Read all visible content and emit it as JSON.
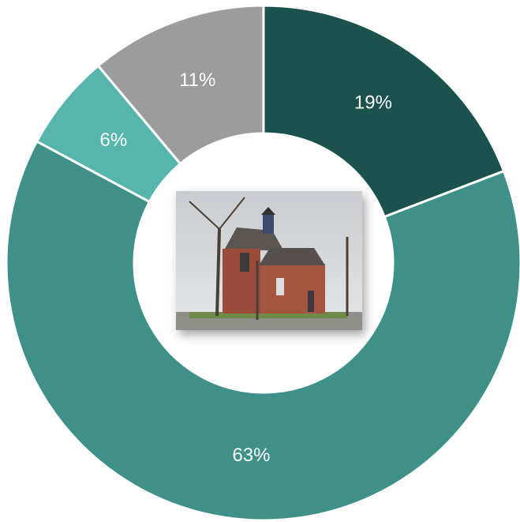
{
  "chart_data": {
    "type": "donut",
    "values": [
      19,
      63,
      6,
      11
    ],
    "value_labels": [
      "19%",
      "63%",
      "6%",
      "11%"
    ],
    "colors": [
      "#1b524d",
      "#3e9088",
      "#56b6ae",
      "#9c9c9c"
    ]
  }
}
